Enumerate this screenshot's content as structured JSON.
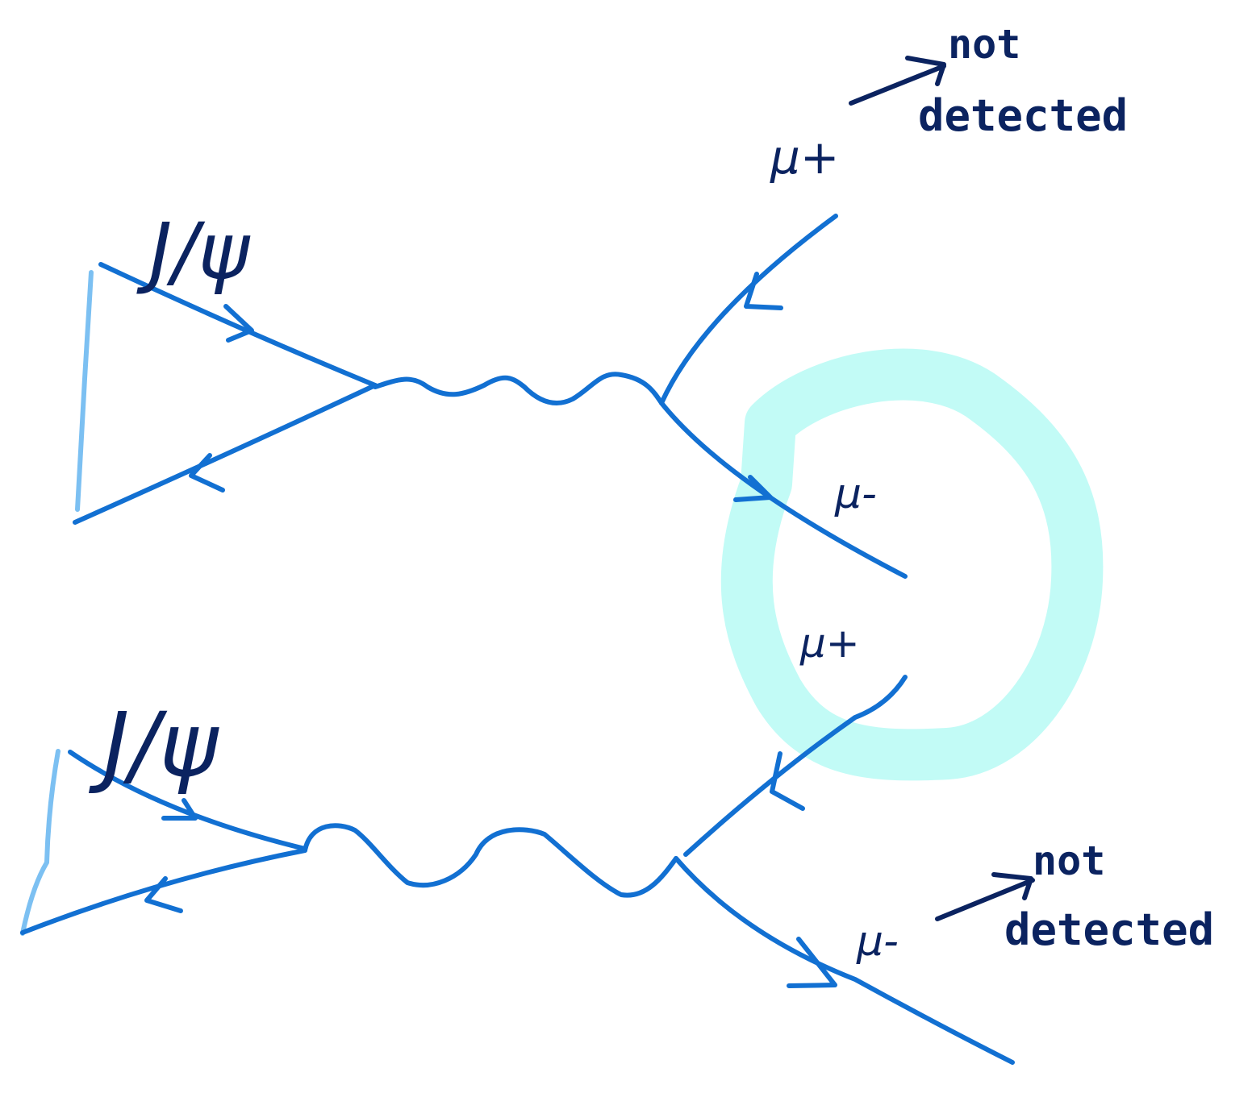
{
  "diagrams": [
    {
      "particle_label": "J/ψ",
      "outgoing_top": {
        "label": "μ+",
        "note": [
          "not",
          "detected"
        ]
      },
      "outgoing_bottom": {
        "label": "μ-"
      }
    },
    {
      "particle_label": "J/ψ",
      "outgoing_top": {
        "label": "μ+"
      },
      "outgoing_bottom": {
        "label": "μ-",
        "note": [
          "not",
          "detected"
        ]
      }
    }
  ],
  "colors": {
    "propagator_lines": "#1270d2",
    "triangle_edge": "#7cc0f2",
    "handwriting": "#0b2360",
    "highlight": "#c2fbf6"
  }
}
